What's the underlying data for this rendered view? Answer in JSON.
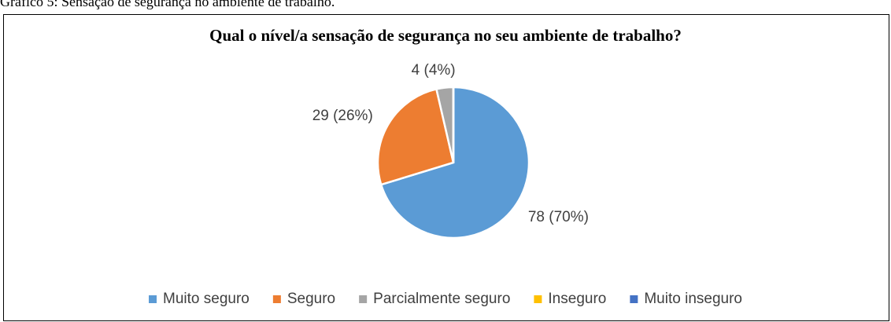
{
  "caption": "Gráfico 5: Sensação de segurança no ambiente de trabalho.",
  "chart_data": {
    "type": "pie",
    "title": "Qual o nível/a sensação de segurança no seu ambiente de trabalho?",
    "categories": [
      "Muito seguro",
      "Seguro",
      "Parcialmente seguro",
      "Inseguro",
      "Muito inseguro"
    ],
    "values": [
      78,
      29,
      4,
      0,
      0
    ],
    "value_labels": [
      "78 (70%)",
      "29 (26%)",
      "4 (4%)",
      null,
      null
    ],
    "colors": [
      "#5b9bd5",
      "#ed7d31",
      "#a5a5a5",
      "#ffc000",
      "#4472c4"
    ],
    "legend": "bottom"
  }
}
